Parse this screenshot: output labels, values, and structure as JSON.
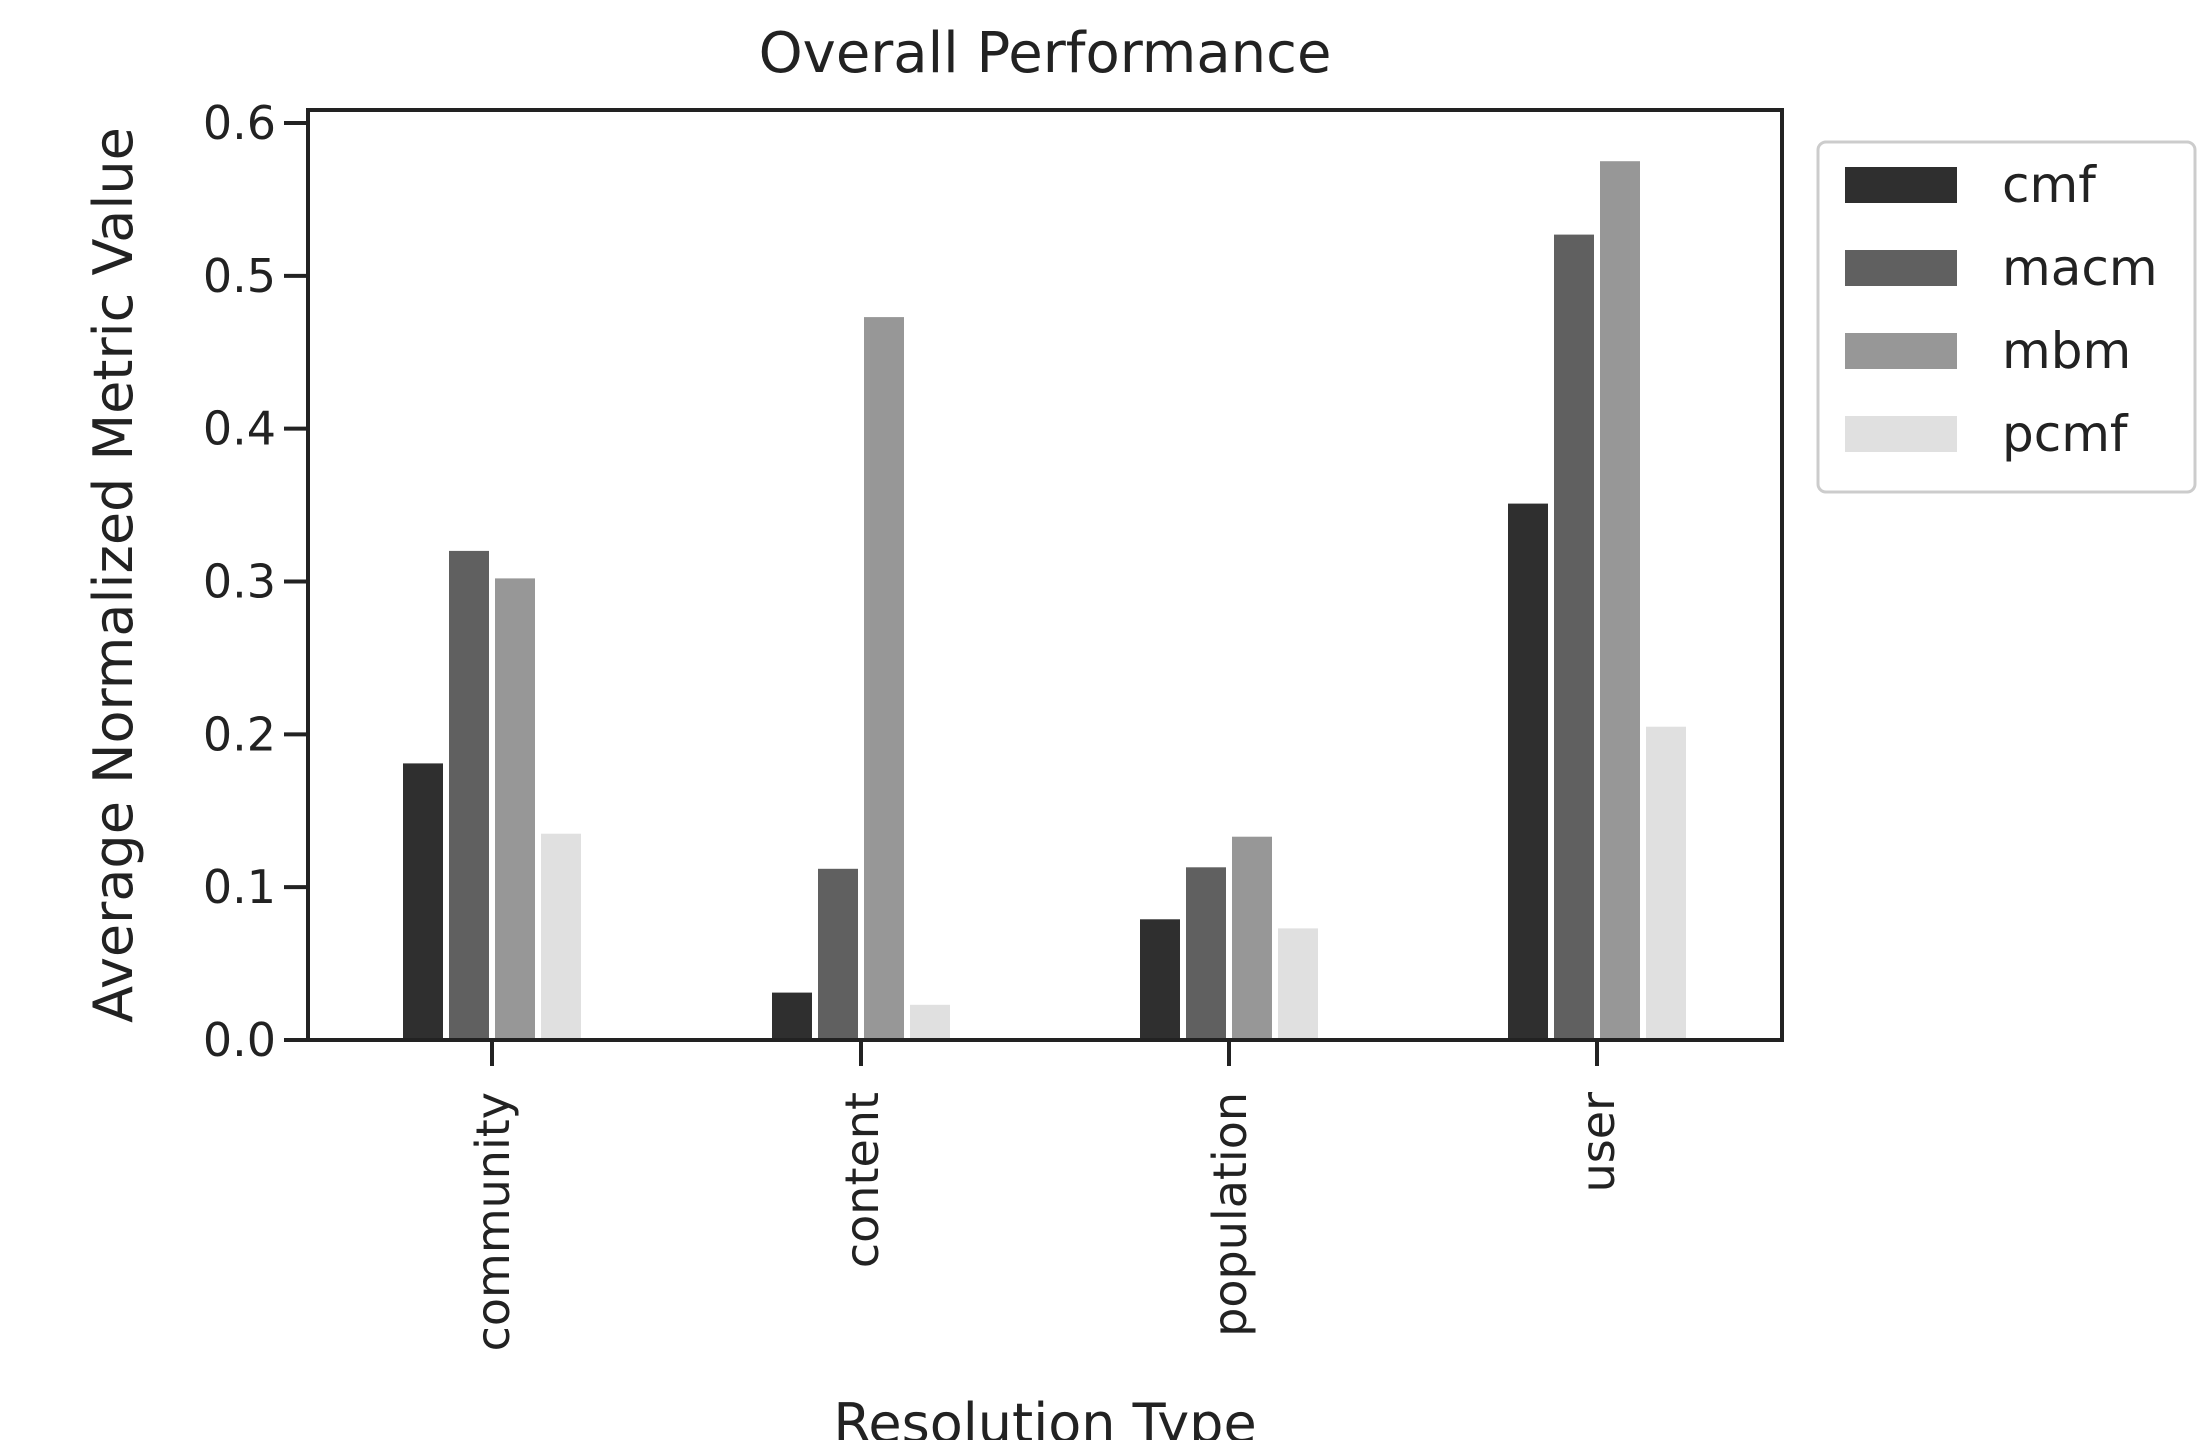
{
  "chart_data": {
    "type": "bar",
    "title": "Overall Performance",
    "xlabel": "Resolution Type",
    "ylabel": "Average Normalized Metric Value",
    "categories": [
      "community",
      "content",
      "population",
      "user"
    ],
    "series": [
      {
        "name": "cmf",
        "color": "#2f2f2f",
        "values": [
          0.181,
          0.031,
          0.079,
          0.351
        ]
      },
      {
        "name": "macm",
        "color": "#606060",
        "values": [
          0.32,
          0.112,
          0.113,
          0.527
        ]
      },
      {
        "name": "mbm",
        "color": "#979797",
        "values": [
          0.302,
          0.473,
          0.133,
          0.575
        ]
      },
      {
        "name": "pcmf",
        "color": "#e0e0e0",
        "values": [
          0.135,
          0.023,
          0.073,
          0.205
        ]
      }
    ],
    "ylim": [
      0,
      0.6
    ],
    "yticks": [
      "0.0",
      "0.1",
      "0.2",
      "0.3",
      "0.4",
      "0.5",
      "0.6"
    ],
    "grid": false,
    "legend_position": "outside-top-right"
  }
}
